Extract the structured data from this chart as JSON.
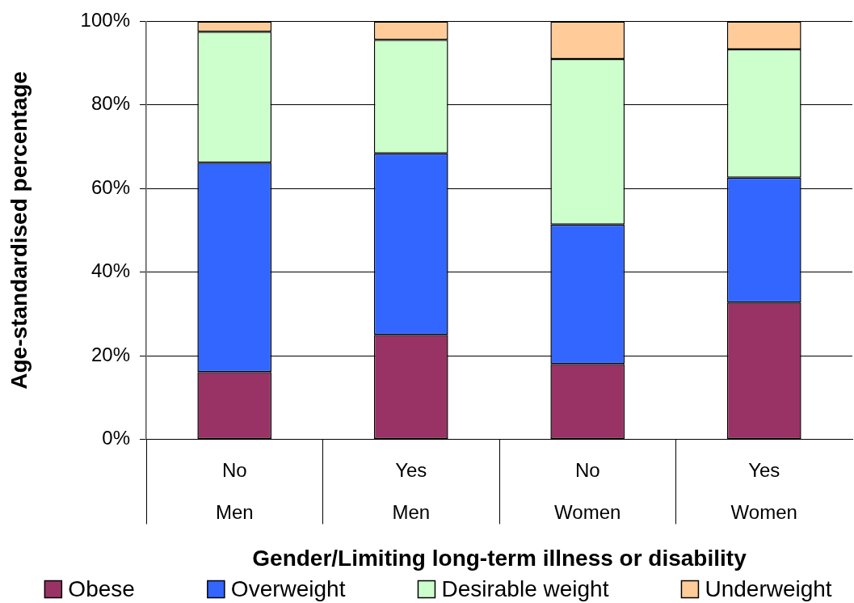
{
  "chart_data": {
    "type": "bar",
    "stacked": true,
    "xlabel": "Gender/Limiting long-term illness or disability",
    "ylabel": "Age-standardised percentage",
    "categories": [
      "No\nMen",
      "Yes\nMen",
      "No\nWomen",
      "Yes\nWomen"
    ],
    "series": [
      {
        "name": "Obese",
        "color": "#993366",
        "values": [
          16.1,
          25.0,
          18.0,
          32.7
        ]
      },
      {
        "name": "Overweight",
        "color": "#3366ff",
        "values": [
          50.1,
          43.4,
          33.4,
          29.9
        ]
      },
      {
        "name": "Desirable weight",
        "color": "#ccffcc",
        "values": [
          31.3,
          27.2,
          39.6,
          30.7
        ]
      },
      {
        "name": "Underweight",
        "color": "#ffcc99",
        "values": [
          2.5,
          4.4,
          9.0,
          6.7
        ]
      }
    ],
    "ylim": [
      0,
      100
    ],
    "yticks": [
      {
        "value": 0,
        "label": "0%"
      },
      {
        "value": 20,
        "label": "20%"
      },
      {
        "value": 40,
        "label": "40%"
      },
      {
        "value": 60,
        "label": "60%"
      },
      {
        "value": 80,
        "label": "80%"
      },
      {
        "value": 100,
        "label": "100%"
      }
    ],
    "grid": "y",
    "legend": "bottom"
  }
}
